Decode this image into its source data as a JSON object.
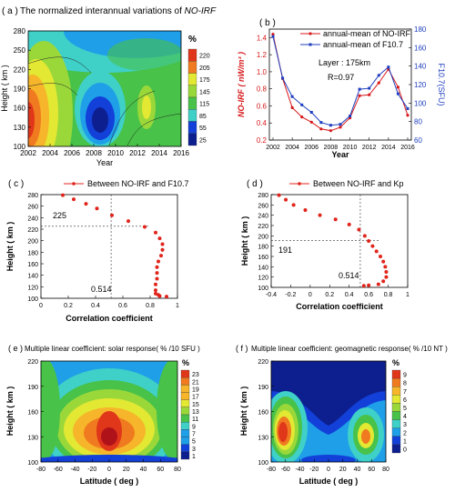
{
  "colors": {
    "nrf_red": "#d7191c",
    "f107_blue": "#1f3fbf",
    "scatter_red": "#e0241b",
    "spectral": [
      "#0d1f8f",
      "#1240d8",
      "#1f9fe8",
      "#3fd0c8",
      "#48c248",
      "#9ad83a",
      "#e3e833",
      "#f6b52a",
      "#f07a1f",
      "#e0361a"
    ]
  },
  "panels": {
    "a": {
      "letter": "( a )",
      "title_prefix": "The normalized interannual variations of ",
      "title_em": "NO-IRF",
      "ylabel": "Height ( km )",
      "xlabel": "Year",
      "colorbar_title": "%",
      "colorbar_ticks": [
        "220",
        "205",
        "175",
        "145",
        "115",
        "85",
        "55",
        "25"
      ]
    },
    "b": {
      "letter": "( b )",
      "ylabel_left": "NO-IRF ( nW/m³ )",
      "ylabel_right": "F10.7(SFU)",
      "xlabel": "Year",
      "legend_nrf": "annual-mean of NO-IRF",
      "legend_f107": "annual-mean of F10.7",
      "annot_layer": "Layer : 175km",
      "annot_r": "R=0.97"
    },
    "c": {
      "letter": "( c )",
      "legend": "Between NO-IRF and F10.7",
      "ylabel": "Height ( km )",
      "xlabel": "Correlation coefficient",
      "mark_height": "225",
      "mark_coef": "0.514"
    },
    "d": {
      "letter": "( d )",
      "legend": "Between NO-IRF and Kp",
      "ylabel": "Height ( km )",
      "xlabel": "Correlation coefficient",
      "mark_height": "191",
      "mark_coef": "0.514"
    },
    "e": {
      "letter": "( e )",
      "title": "Multiple linear coefficient: solar response( % /10 SFU )",
      "ylabel": "Height ( km )",
      "xlabel": "Latitude ( deg )",
      "colorbar_title": "%",
      "colorbar_ticks": [
        "23",
        "21",
        "19",
        "17",
        "15",
        "13",
        "11",
        "9",
        "7",
        "5",
        "3",
        "1"
      ]
    },
    "f": {
      "letter": "( f )",
      "title": "Multiple linear coefficient: geomagnetic response( % /10 NT )",
      "ylabel": "Height ( km )",
      "xlabel": "Latitude ( deg )",
      "colorbar_title": "%",
      "colorbar_ticks": [
        "9",
        "8",
        "7",
        "6",
        "5",
        "4",
        "3",
        "2",
        "1",
        "0"
      ]
    }
  },
  "chart_data": [
    {
      "type": "heatmap",
      "x_ticks": [
        2002,
        2004,
        2006,
        2008,
        2010,
        2012,
        2014,
        2016
      ],
      "y_ticks": [
        100,
        130,
        160,
        190,
        220,
        250,
        280
      ],
      "xlim": [
        2002,
        2016
      ],
      "ylim": [
        100,
        280
      ],
      "color_range": [
        25,
        220
      ]
    },
    {
      "type": "line",
      "x": [
        2002,
        2003,
        2004,
        2005,
        2006,
        2007,
        2008,
        2009,
        2010,
        2011,
        2012,
        2013,
        2014,
        2015,
        2016
      ],
      "x_ticks": [
        2002,
        2004,
        2006,
        2008,
        2010,
        2012,
        2014,
        2016
      ],
      "y_left_ticks": [
        0.2,
        0.4,
        0.6,
        0.8,
        1.0,
        1.2,
        1.4
      ],
      "y_right_ticks": [
        60,
        80,
        100,
        120,
        140,
        160,
        180
      ],
      "ylim_left": [
        0.2,
        1.5
      ],
      "ylim_right": [
        60,
        180
      ],
      "series": [
        {
          "name": "annual-mean of NO-IRF",
          "axis": "left",
          "values": [
            1.44,
            0.92,
            0.58,
            0.47,
            0.41,
            0.33,
            0.31,
            0.35,
            0.46,
            0.72,
            0.73,
            0.87,
            1.03,
            0.82,
            0.49
          ]
        },
        {
          "name": "annual-mean of F10.7",
          "axis": "right",
          "values": [
            172,
            127,
            107,
            98,
            90,
            79,
            76,
            77,
            86,
            115,
            116,
            130,
            139,
            110,
            94
          ]
        }
      ]
    },
    {
      "type": "scatter",
      "series_name": "Between NO-IRF and F10.7",
      "xlim": [
        0,
        1.0
      ],
      "ylim": [
        100,
        280
      ],
      "x_ticks": [
        0,
        0.2,
        0.4,
        0.6,
        0.8,
        1.0
      ],
      "y_ticks": [
        100,
        120,
        140,
        160,
        180,
        200,
        220,
        240,
        260,
        280
      ],
      "x": [
        0.16,
        0.24,
        0.33,
        0.41,
        0.52,
        0.64,
        0.76,
        0.84,
        0.87,
        0.89,
        0.89,
        0.88,
        0.86,
        0.85,
        0.85,
        0.85,
        0.84,
        0.84,
        0.84,
        0.86,
        0.87,
        0.92
      ],
      "y": [
        279,
        272,
        264,
        256,
        244,
        234,
        224,
        214,
        204,
        194,
        184,
        174,
        164,
        154,
        144,
        134,
        124,
        114,
        108,
        106,
        104,
        103
      ]
    },
    {
      "type": "scatter",
      "series_name": "Between NO-IRF and Kp",
      "xlim": [
        -0.4,
        1.0
      ],
      "ylim": [
        100,
        280
      ],
      "x_ticks": [
        -0.4,
        -0.2,
        0,
        0.2,
        0.4,
        0.6,
        0.8,
        1.0
      ],
      "y_ticks": [
        100,
        120,
        140,
        160,
        180,
        200,
        220,
        240,
        260,
        280
      ],
      "x": [
        -0.32,
        -0.25,
        -0.17,
        -0.05,
        0.1,
        0.26,
        0.4,
        0.5,
        0.56,
        0.6,
        0.64,
        0.68,
        0.72,
        0.75,
        0.77,
        0.78,
        0.78,
        0.75,
        0.7,
        0.6,
        0.55
      ],
      "y": [
        279,
        270,
        260,
        250,
        240,
        232,
        222,
        212,
        200,
        190,
        180,
        170,
        160,
        150,
        140,
        130,
        120,
        112,
        106,
        104,
        103
      ]
    },
    {
      "type": "heatmap",
      "x_ticks": [
        -80,
        -60,
        -40,
        -20,
        0,
        20,
        40,
        60,
        80
      ],
      "y_ticks": [
        100,
        130,
        160,
        190,
        220
      ],
      "xlim": [
        -80,
        80
      ],
      "ylim": [
        100,
        220
      ],
      "color_range": [
        1,
        23
      ]
    },
    {
      "type": "heatmap",
      "x_ticks": [
        -80,
        -60,
        -40,
        -20,
        0,
        20,
        40,
        60,
        80
      ],
      "y_ticks": [
        100,
        130,
        160,
        190,
        220
      ],
      "xlim": [
        -80,
        80
      ],
      "ylim": [
        100,
        220
      ],
      "color_range": [
        0,
        9
      ]
    }
  ]
}
